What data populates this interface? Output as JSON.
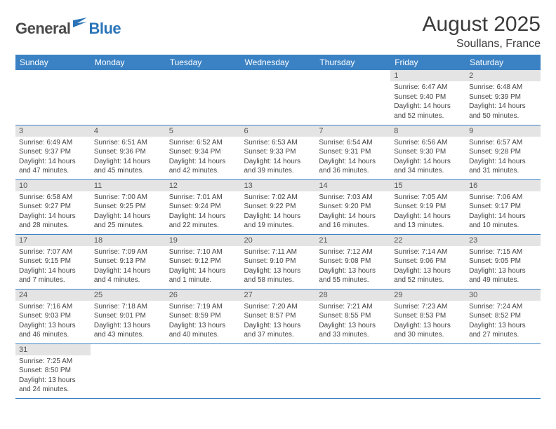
{
  "colors": {
    "header_bg": "#3b82c4",
    "header_text": "#ffffff",
    "daynum_bg": "#e4e4e4",
    "daynum_text": "#555555",
    "cell_text": "#444444",
    "row_border": "#3b82c4",
    "page_bg": "#ffffff",
    "title_text": "#3a3a3a",
    "logo_gray": "#4a4a4a",
    "logo_blue": "#2b74b8"
  },
  "typography": {
    "title_fontsize": 30,
    "location_fontsize": 16,
    "weekday_fontsize": 12,
    "daynum_fontsize": 11,
    "body_fontsize": 10,
    "logo_fontsize": 22
  },
  "logo": {
    "part1": "General",
    "part2": "Blue"
  },
  "title": "August 2025",
  "location": "Soullans, France",
  "weekdays": [
    "Sunday",
    "Monday",
    "Tuesday",
    "Wednesday",
    "Thursday",
    "Friday",
    "Saturday"
  ],
  "first_weekday_index": 5,
  "days": [
    {
      "n": "1",
      "sunrise": "6:47 AM",
      "sunset": "9:40 PM",
      "daylight": "14 hours and 52 minutes."
    },
    {
      "n": "2",
      "sunrise": "6:48 AM",
      "sunset": "9:39 PM",
      "daylight": "14 hours and 50 minutes."
    },
    {
      "n": "3",
      "sunrise": "6:49 AM",
      "sunset": "9:37 PM",
      "daylight": "14 hours and 47 minutes."
    },
    {
      "n": "4",
      "sunrise": "6:51 AM",
      "sunset": "9:36 PM",
      "daylight": "14 hours and 45 minutes."
    },
    {
      "n": "5",
      "sunrise": "6:52 AM",
      "sunset": "9:34 PM",
      "daylight": "14 hours and 42 minutes."
    },
    {
      "n": "6",
      "sunrise": "6:53 AM",
      "sunset": "9:33 PM",
      "daylight": "14 hours and 39 minutes."
    },
    {
      "n": "7",
      "sunrise": "6:54 AM",
      "sunset": "9:31 PM",
      "daylight": "14 hours and 36 minutes."
    },
    {
      "n": "8",
      "sunrise": "6:56 AM",
      "sunset": "9:30 PM",
      "daylight": "14 hours and 34 minutes."
    },
    {
      "n": "9",
      "sunrise": "6:57 AM",
      "sunset": "9:28 PM",
      "daylight": "14 hours and 31 minutes."
    },
    {
      "n": "10",
      "sunrise": "6:58 AM",
      "sunset": "9:27 PM",
      "daylight": "14 hours and 28 minutes."
    },
    {
      "n": "11",
      "sunrise": "7:00 AM",
      "sunset": "9:25 PM",
      "daylight": "14 hours and 25 minutes."
    },
    {
      "n": "12",
      "sunrise": "7:01 AM",
      "sunset": "9:24 PM",
      "daylight": "14 hours and 22 minutes."
    },
    {
      "n": "13",
      "sunrise": "7:02 AM",
      "sunset": "9:22 PM",
      "daylight": "14 hours and 19 minutes."
    },
    {
      "n": "14",
      "sunrise": "7:03 AM",
      "sunset": "9:20 PM",
      "daylight": "14 hours and 16 minutes."
    },
    {
      "n": "15",
      "sunrise": "7:05 AM",
      "sunset": "9:19 PM",
      "daylight": "14 hours and 13 minutes."
    },
    {
      "n": "16",
      "sunrise": "7:06 AM",
      "sunset": "9:17 PM",
      "daylight": "14 hours and 10 minutes."
    },
    {
      "n": "17",
      "sunrise": "7:07 AM",
      "sunset": "9:15 PM",
      "daylight": "14 hours and 7 minutes."
    },
    {
      "n": "18",
      "sunrise": "7:09 AM",
      "sunset": "9:13 PM",
      "daylight": "14 hours and 4 minutes."
    },
    {
      "n": "19",
      "sunrise": "7:10 AM",
      "sunset": "9:12 PM",
      "daylight": "14 hours and 1 minute."
    },
    {
      "n": "20",
      "sunrise": "7:11 AM",
      "sunset": "9:10 PM",
      "daylight": "13 hours and 58 minutes."
    },
    {
      "n": "21",
      "sunrise": "7:12 AM",
      "sunset": "9:08 PM",
      "daylight": "13 hours and 55 minutes."
    },
    {
      "n": "22",
      "sunrise": "7:14 AM",
      "sunset": "9:06 PM",
      "daylight": "13 hours and 52 minutes."
    },
    {
      "n": "23",
      "sunrise": "7:15 AM",
      "sunset": "9:05 PM",
      "daylight": "13 hours and 49 minutes."
    },
    {
      "n": "24",
      "sunrise": "7:16 AM",
      "sunset": "9:03 PM",
      "daylight": "13 hours and 46 minutes."
    },
    {
      "n": "25",
      "sunrise": "7:18 AM",
      "sunset": "9:01 PM",
      "daylight": "13 hours and 43 minutes."
    },
    {
      "n": "26",
      "sunrise": "7:19 AM",
      "sunset": "8:59 PM",
      "daylight": "13 hours and 40 minutes."
    },
    {
      "n": "27",
      "sunrise": "7:20 AM",
      "sunset": "8:57 PM",
      "daylight": "13 hours and 37 minutes."
    },
    {
      "n": "28",
      "sunrise": "7:21 AM",
      "sunset": "8:55 PM",
      "daylight": "13 hours and 33 minutes."
    },
    {
      "n": "29",
      "sunrise": "7:23 AM",
      "sunset": "8:53 PM",
      "daylight": "13 hours and 30 minutes."
    },
    {
      "n": "30",
      "sunrise": "7:24 AM",
      "sunset": "8:52 PM",
      "daylight": "13 hours and 27 minutes."
    },
    {
      "n": "31",
      "sunrise": "7:25 AM",
      "sunset": "8:50 PM",
      "daylight": "13 hours and 24 minutes."
    }
  ],
  "labels": {
    "sunrise": "Sunrise:",
    "sunset": "Sunset:",
    "daylight": "Daylight:"
  }
}
